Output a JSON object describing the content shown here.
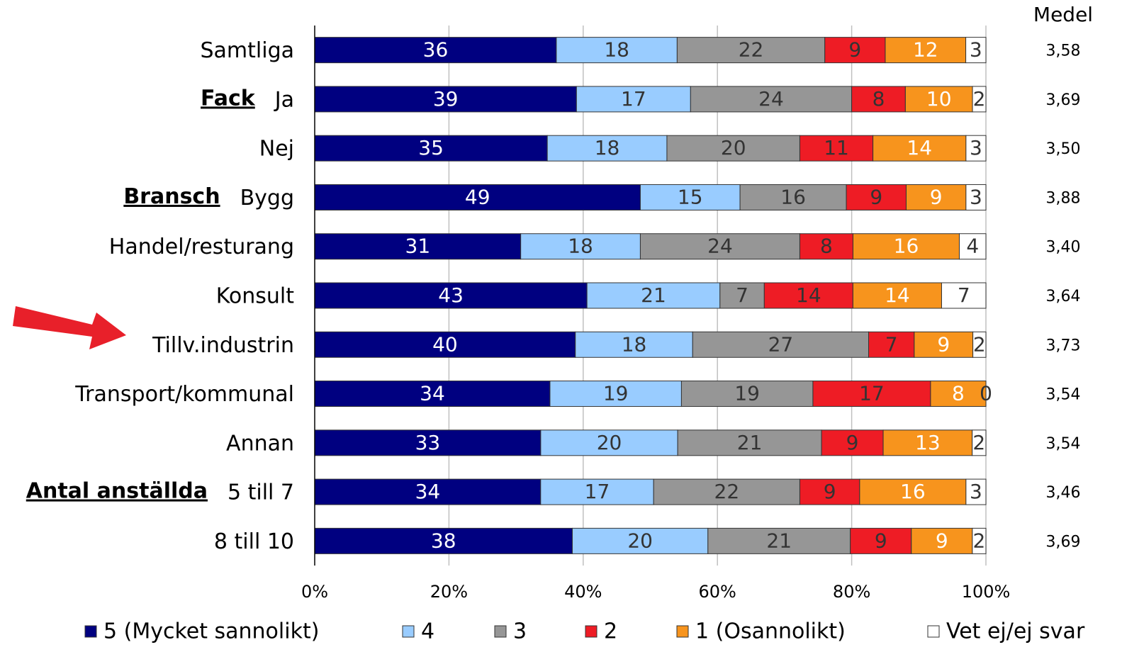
{
  "chart_data": {
    "type": "stacked_percent_bar",
    "orientation": "horizontal",
    "categories": [
      "Samtliga",
      "Ja",
      "Nej",
      "Bygg",
      "Handel/resturang",
      "Konsult",
      "Tillv.industrin",
      "Transport/kommunal",
      "Annan",
      "5 till 7",
      "8 till 10"
    ],
    "group_labels": [
      null,
      "Fack",
      null,
      "Bransch",
      null,
      null,
      null,
      null,
      null,
      "Antal anställda",
      null
    ],
    "series": [
      {
        "name": "5 (Mycket sannolikt)",
        "color": "#000080",
        "label_color": "#ffffff",
        "values": [
          36,
          39,
          35,
          49,
          31,
          43,
          40,
          34,
          33,
          34,
          38
        ]
      },
      {
        "name": "4",
        "color": "#99ccff",
        "label_color": "#333333",
        "values": [
          18,
          17,
          18,
          15,
          18,
          21,
          18,
          19,
          20,
          17,
          20
        ]
      },
      {
        "name": "3",
        "color": "#969696",
        "label_color": "#333333",
        "values": [
          22,
          24,
          20,
          16,
          24,
          7,
          27,
          19,
          21,
          22,
          21
        ]
      },
      {
        "name": "2",
        "color": "#ee1c25",
        "label_color": "#333333",
        "values": [
          9,
          8,
          11,
          9,
          8,
          14,
          7,
          17,
          9,
          9,
          9
        ]
      },
      {
        "name": "1 (Osannolikt)",
        "color": "#f7941d",
        "label_color": "#ffffff",
        "values": [
          12,
          10,
          14,
          9,
          16,
          14,
          9,
          8,
          13,
          16,
          9
        ]
      },
      {
        "name": "Vet ej/ej svar",
        "color": "#ffffff",
        "label_color": "#333333",
        "values": [
          3,
          2,
          3,
          3,
          4,
          7,
          2,
          0,
          2,
          3,
          2
        ]
      }
    ],
    "xlim": [
      0,
      100
    ],
    "xticks": [
      {
        "value": 0,
        "label": "0%"
      },
      {
        "value": 20,
        "label": "20%"
      },
      {
        "value": 40,
        "label": "40%"
      },
      {
        "value": 60,
        "label": "60%"
      },
      {
        "value": 80,
        "label": "80%"
      },
      {
        "value": 100,
        "label": "100%"
      }
    ],
    "grid": true,
    "legend": "bottom",
    "medel": {
      "title": "Medel",
      "values": [
        3.58,
        3.69,
        3.5,
        3.88,
        3.4,
        3.64,
        3.73,
        3.54,
        3.54,
        3.46,
        3.69
      ],
      "value_labels": [
        "3,58",
        "3,69",
        "3,50",
        "3,88",
        "3,40",
        "3,64",
        "3,73",
        "3,54",
        "3,54",
        "3,46",
        "3,69"
      ]
    }
  }
}
